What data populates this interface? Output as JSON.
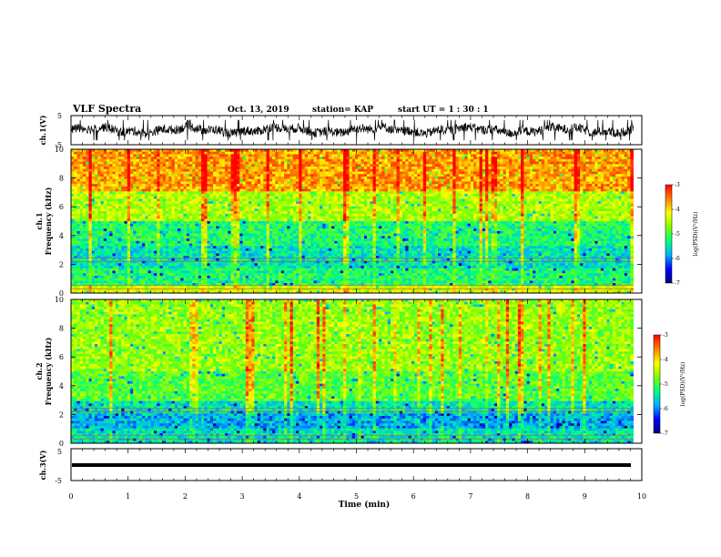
{
  "header": {
    "title": "VLF Spectra",
    "date": "Oct. 13, 2019",
    "station": "station= KAP",
    "start": "start  UT =   1 : 30 : 1"
  },
  "chart_data": [
    {
      "type": "line",
      "name": "ch1-waveform",
      "ylabel": "ch.1(V)",
      "ylim": [
        -5,
        5
      ],
      "y_ticks": [
        "5",
        "-5"
      ],
      "x_range": [
        0,
        9.85
      ],
      "amplitude_range": [
        -3.5,
        3.5
      ]
    },
    {
      "type": "heatmap",
      "name": "ch1-spectrogram",
      "ylabel_line1": "ch.1",
      "ylabel_line2": "Frequency (kHz)",
      "ylim": [
        0,
        10
      ],
      "y_ticks": [
        "0",
        "2",
        "4",
        "6",
        "8",
        "10"
      ],
      "x_range": [
        0,
        9.85
      ],
      "colorbar": {
        "label": "log(PSD)(V²/Hz)",
        "range": [
          -7,
          -3
        ],
        "ticks": [
          "-3",
          "-4",
          "-5",
          "-6",
          "-7"
        ]
      },
      "bands_kHz_log_psd": [
        {
          "from": 0,
          "to": 0.6,
          "level": -4.3
        },
        {
          "from": 0.6,
          "to": 1.8,
          "level": -5.2
        },
        {
          "from": 1.8,
          "to": 3.3,
          "level": -5.5
        },
        {
          "from": 3.3,
          "to": 5.0,
          "level": -5.2
        },
        {
          "from": 5.0,
          "to": 7.0,
          "level": -4.5
        },
        {
          "from": 7.0,
          "to": 10.0,
          "level": -3.7
        }
      ]
    },
    {
      "type": "heatmap",
      "name": "ch2-spectrogram",
      "ylabel_line1": "ch.2",
      "ylabel_line2": "Frequency (kHz)",
      "ylim": [
        0,
        10
      ],
      "y_ticks": [
        "0",
        "2",
        "4",
        "6",
        "8",
        "10"
      ],
      "x_range": [
        0,
        9.85
      ],
      "colorbar": {
        "label": "log(PSD)(V²/Hz)",
        "range": [
          -7,
          -3
        ],
        "ticks": [
          "-3",
          "-4",
          "-5",
          "-6",
          "-7"
        ]
      },
      "bands_kHz_log_psd": [
        {
          "from": 0,
          "to": 1.0,
          "level": -5.5
        },
        {
          "from": 1.0,
          "to": 2.0,
          "level": -5.8
        },
        {
          "from": 2.0,
          "to": 3.0,
          "level": -5.5
        },
        {
          "from": 3.0,
          "to": 5.0,
          "level": -4.9
        },
        {
          "from": 5.0,
          "to": 10.0,
          "level": -4.6
        }
      ]
    },
    {
      "type": "line",
      "name": "ch3-waveform",
      "ylabel": "ch.3(V)",
      "ylim": [
        -5,
        5
      ],
      "y_ticks": [
        "5",
        "-5"
      ],
      "x_range": [
        0,
        9.85
      ],
      "value": 0
    }
  ],
  "x_axis": {
    "label": "Time (min)",
    "ticks": [
      "0",
      "1",
      "2",
      "3",
      "4",
      "5",
      "6",
      "7",
      "8",
      "9",
      "10"
    ],
    "range": [
      0,
      10
    ]
  },
  "colormap": [
    "#000080",
    "#0000ff",
    "#00b0ff",
    "#00ff80",
    "#80ff00",
    "#ffff00",
    "#ff8000",
    "#ff0000",
    "#ffffff"
  ]
}
